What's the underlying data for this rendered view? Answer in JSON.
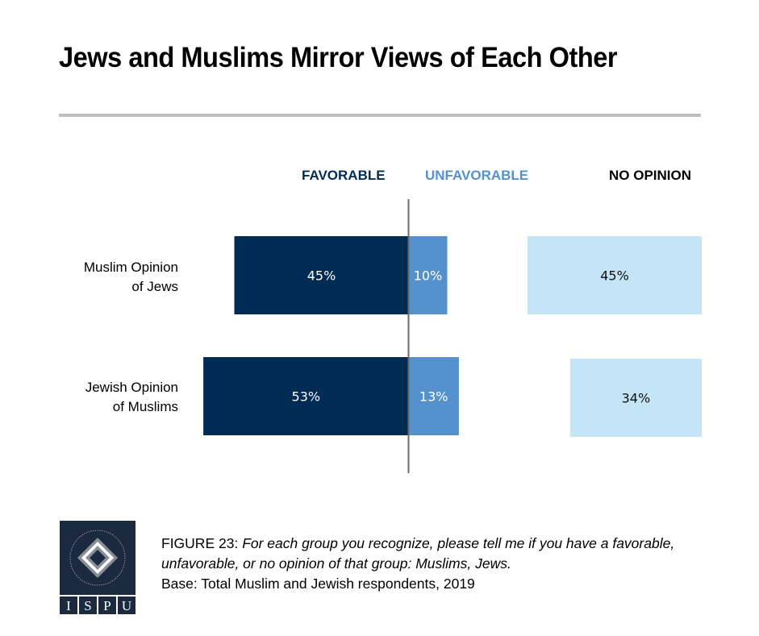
{
  "header": {
    "title": "Jews and Muslims Mirror Views of Each Other"
  },
  "legend": [
    {
      "label": "FAVORABLE",
      "color": "#002b54"
    },
    {
      "label": "UNFAVORABLE",
      "color": "#5591cc"
    },
    {
      "label": "NO OPINION",
      "color": "#000000"
    }
  ],
  "chart_data": {
    "type": "bar",
    "orientation": "horizontal-diverging",
    "title": "Jews and Muslims Mirror Views of Each Other",
    "categories": [
      "Muslim Opinion of Jews",
      "Jewish Opinion of Muslims"
    ],
    "category_lines": [
      [
        "Muslim Opinion",
        "of Jews"
      ],
      [
        "Jewish Opinion",
        "of Muslims"
      ]
    ],
    "series": [
      {
        "name": "FAVORABLE",
        "color": "#002b54",
        "values": [
          45,
          53
        ],
        "labels": [
          "45%",
          "53%"
        ]
      },
      {
        "name": "UNFAVORABLE",
        "color": "#5591cc",
        "values": [
          10,
          13
        ],
        "labels": [
          "10%",
          "13%"
        ]
      },
      {
        "name": "NO OPINION",
        "color": "#c3e5f7",
        "values": [
          45,
          34
        ],
        "labels": [
          "45%",
          "34%"
        ]
      }
    ],
    "unit": "%",
    "legend_position": "top"
  },
  "caption": {
    "figure_label": "FIGURE 23",
    "question": "For each group you recognize, please tell me if you have a favorable, unfavorable, or no opinion of that group: Muslims, Jews.",
    "base": "Base: Total Muslim and Jewish respondents, 2019"
  },
  "logo": {
    "ring_text": "INSTITUTE FOR SOCIAL POLICY AND UNDERSTANDING",
    "letters": [
      "I",
      "S",
      "P",
      "U"
    ]
  }
}
